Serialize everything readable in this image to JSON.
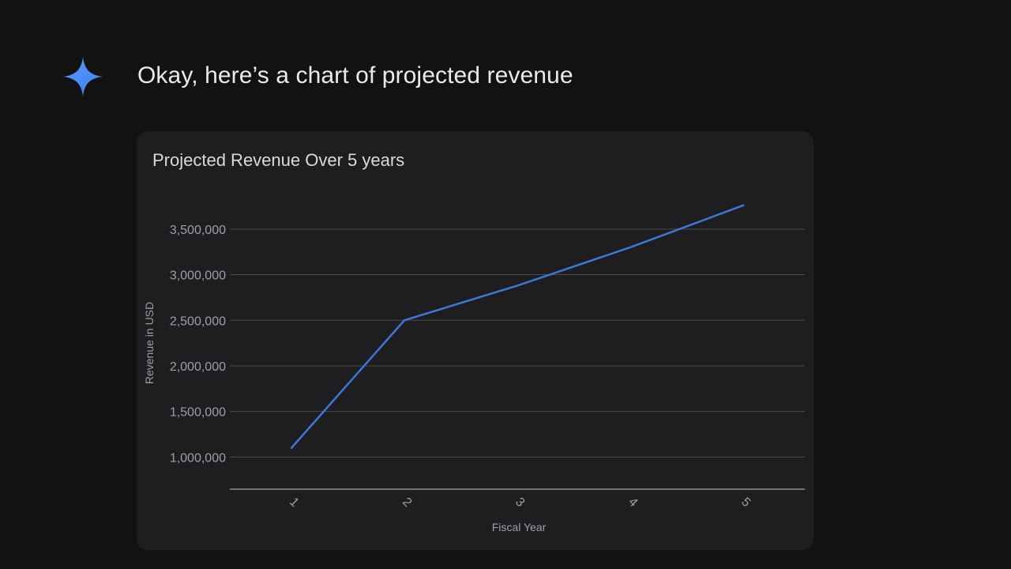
{
  "message": {
    "text": "Okay, here’s a chart of projected revenue",
    "icon": "gemini-spark-icon",
    "icon_color": "#4b8df8"
  },
  "chart_data": {
    "type": "line",
    "title": "Projected Revenue Over 5 years",
    "xlabel": "Fiscal Year",
    "ylabel": "Revenue in USD",
    "x": [
      "1",
      "2",
      "3",
      "4",
      "5"
    ],
    "series": [
      {
        "values": [
          1100000,
          2500000,
          2880000,
          3300000,
          3760000
        ],
        "color": "#3b78d8"
      }
    ],
    "y_ticks": [
      1000000,
      1500000,
      2000000,
      2500000,
      3000000,
      3500000
    ],
    "y_tick_labels": [
      "1,000,000",
      "1,500,000",
      "2,000,000",
      "2,500,000",
      "3,000,000",
      "3,500,000"
    ],
    "ylim": [
      830000,
      3750000
    ],
    "grid": true,
    "legend": "none"
  }
}
